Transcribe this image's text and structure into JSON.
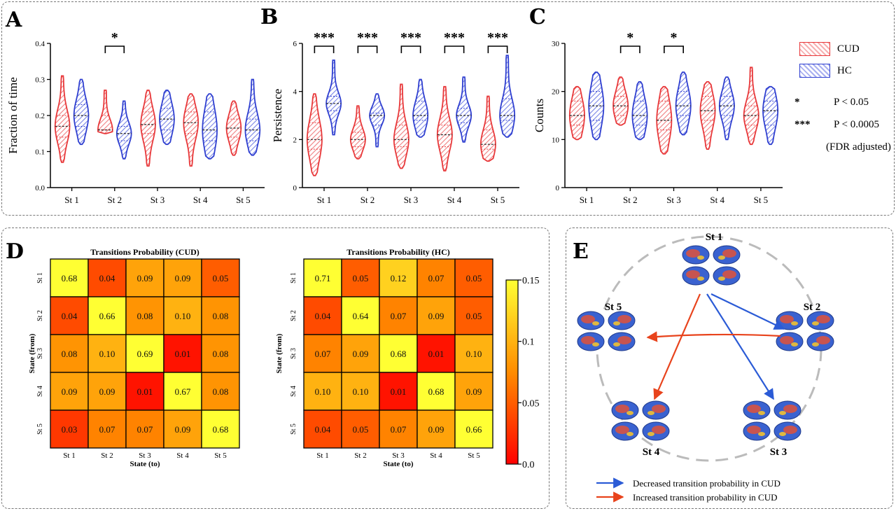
{
  "panel_labels": {
    "a": "A",
    "b": "B",
    "c": "C",
    "d": "D",
    "e": "E"
  },
  "legend": {
    "groups": [
      {
        "name": "CUD",
        "color": "#e8383a"
      },
      {
        "name": "HC",
        "color": "#2f3fd0"
      }
    ],
    "significance": [
      {
        "symbol": "*",
        "text": "P < 0.05"
      },
      {
        "symbol": "***",
        "text": "P < 0.0005"
      }
    ],
    "note": "(FDR adjusted)"
  },
  "chart_data": [
    {
      "type": "violin",
      "panel": "A",
      "ylabel": "Fraction of time",
      "ylim": [
        0,
        0.4
      ],
      "yticks": [
        "0.0",
        "0.1",
        "0.2",
        "0.3",
        "0.4"
      ],
      "categories": [
        "St 1",
        "St 2",
        "St 3",
        "St 4",
        "St 5"
      ],
      "significance": [
        "",
        "*",
        "",
        "",
        ""
      ],
      "series": [
        {
          "name": "CUD",
          "color": "#e8383a",
          "min": [
            0.07,
            0.15,
            0.06,
            0.06,
            0.09
          ],
          "max": [
            0.31,
            0.27,
            0.27,
            0.26,
            0.24
          ],
          "median": [
            0.17,
            0.16,
            0.175,
            0.18,
            0.165
          ],
          "q1": [
            0.14,
            0.16,
            0.15,
            0.15,
            0.14
          ],
          "q3": [
            0.2,
            0.2,
            0.21,
            0.21,
            0.19
          ]
        },
        {
          "name": "HC",
          "color": "#2f3fd0",
          "min": [
            0.12,
            0.08,
            0.12,
            0.08,
            0.09
          ],
          "max": [
            0.3,
            0.24,
            0.27,
            0.26,
            0.3
          ],
          "median": [
            0.2,
            0.15,
            0.19,
            0.16,
            0.16
          ],
          "q1": [
            0.17,
            0.13,
            0.16,
            0.13,
            0.13
          ],
          "q3": [
            0.23,
            0.17,
            0.22,
            0.21,
            0.19
          ]
        }
      ]
    },
    {
      "type": "violin",
      "panel": "B",
      "ylabel": "Persistence",
      "ylim": [
        0,
        6
      ],
      "yticks": [
        "0",
        "2",
        "4",
        "6"
      ],
      "categories": [
        "St 1",
        "St 2",
        "St 3",
        "St 4",
        "St 5"
      ],
      "significance": [
        "***",
        "***",
        "***",
        "***",
        "***"
      ],
      "series": [
        {
          "name": "CUD",
          "color": "#e8383a",
          "min": [
            0.5,
            1.2,
            0.8,
            0.7,
            1.1
          ],
          "max": [
            3.9,
            3.4,
            4.3,
            4.2,
            3.8
          ],
          "median": [
            2.0,
            2.0,
            2.0,
            2.2,
            1.8
          ],
          "q1": [
            1.6,
            1.7,
            1.7,
            1.7,
            1.6
          ],
          "q3": [
            2.7,
            2.3,
            2.6,
            2.6,
            2.4
          ]
        },
        {
          "name": "HC",
          "color": "#2f3fd0",
          "min": [
            2.2,
            1.7,
            2.1,
            1.9,
            2.1
          ],
          "max": [
            5.3,
            3.9,
            4.5,
            4.6,
            5.5
          ],
          "median": [
            3.5,
            3.0,
            3.0,
            3.0,
            3.0
          ],
          "q1": [
            3.2,
            2.6,
            2.8,
            2.7,
            2.8
          ],
          "q3": [
            3.8,
            3.1,
            3.6,
            3.3,
            3.7
          ]
        }
      ]
    },
    {
      "type": "violin",
      "panel": "C",
      "ylabel": "Counts",
      "ylim": [
        0,
        30
      ],
      "yticks": [
        "0",
        "10",
        "20",
        "30"
      ],
      "categories": [
        "St 1",
        "St 2",
        "St 3",
        "St 4",
        "St 5"
      ],
      "significance": [
        "",
        "*",
        "*",
        "",
        ""
      ],
      "series": [
        {
          "name": "CUD",
          "color": "#e8383a",
          "min": [
            10,
            13,
            7,
            8,
            9
          ],
          "max": [
            21,
            23,
            21,
            22,
            25
          ],
          "median": [
            15,
            17,
            14,
            16,
            15
          ],
          "q1": [
            13,
            15,
            12,
            14,
            13
          ],
          "q3": [
            18,
            19,
            18,
            19,
            17
          ]
        },
        {
          "name": "HC",
          "color": "#2f3fd0",
          "min": [
            10,
            10,
            11,
            10,
            9
          ],
          "max": [
            24,
            22,
            24,
            23,
            21
          ],
          "median": [
            17,
            15,
            17,
            17,
            16
          ],
          "q1": [
            14,
            13,
            15,
            15,
            13
          ],
          "q3": [
            20,
            18,
            20,
            19,
            18
          ]
        }
      ]
    },
    {
      "type": "heatmap",
      "panel": "D",
      "title": "Transitions Probability (CUD)",
      "xlabel": "State (to)",
      "ylabel": "State (from)",
      "rows": [
        "St 1",
        "St 2",
        "St 3",
        "St 4",
        "St 5"
      ],
      "cols": [
        "St 1",
        "St 2",
        "St 3",
        "St 4",
        "St 5"
      ],
      "values": [
        [
          0.68,
          0.04,
          0.09,
          0.09,
          0.05
        ],
        [
          0.04,
          0.66,
          0.08,
          0.1,
          0.08
        ],
        [
          0.08,
          0.1,
          0.69,
          0.01,
          0.08
        ],
        [
          0.09,
          0.09,
          0.01,
          0.67,
          0.08
        ],
        [
          0.03,
          0.07,
          0.07,
          0.09,
          0.68
        ]
      ],
      "color_range": [
        0,
        0.15
      ]
    },
    {
      "type": "heatmap",
      "panel": "D",
      "title": "Transitions Probability (HC)",
      "xlabel": "State (to)",
      "ylabel": "State (from)",
      "rows": [
        "St 1",
        "St 2",
        "St 3",
        "St 4",
        "St 5"
      ],
      "cols": [
        "St 1",
        "St 2",
        "St 3",
        "St 4",
        "St 5"
      ],
      "values": [
        [
          0.71,
          0.05,
          0.12,
          0.07,
          0.05
        ],
        [
          0.04,
          0.64,
          0.07,
          0.09,
          0.05
        ],
        [
          0.07,
          0.09,
          0.68,
          0.01,
          0.1
        ],
        [
          0.1,
          0.1,
          0.01,
          0.68,
          0.09
        ],
        [
          0.04,
          0.05,
          0.07,
          0.09,
          0.66
        ]
      ],
      "color_range": [
        0,
        0.15
      ],
      "colorbar_ticks": [
        "0.15",
        "0.1",
        "0.05",
        "0.0"
      ]
    },
    {
      "type": "network",
      "panel": "E",
      "nodes": [
        "St 1",
        "St 2",
        "St 3",
        "St 4",
        "St 5"
      ],
      "edges": [
        {
          "from": "St 1",
          "to": "St 2",
          "change": "decreased",
          "color": "#2b5bd6"
        },
        {
          "from": "St 1",
          "to": "St 3",
          "change": "decreased",
          "color": "#2b5bd6"
        },
        {
          "from": "St 1",
          "to": "St 4",
          "change": "increased",
          "color": "#e8431c"
        },
        {
          "from": "St 2",
          "to": "St 5",
          "change": "increased",
          "color": "#e8431c"
        }
      ],
      "legend": [
        {
          "text": "Decreased transition probability in CUD",
          "color": "#2b5bd6"
        },
        {
          "text": "Increased transition probability in CUD",
          "color": "#e8431c"
        }
      ]
    }
  ]
}
